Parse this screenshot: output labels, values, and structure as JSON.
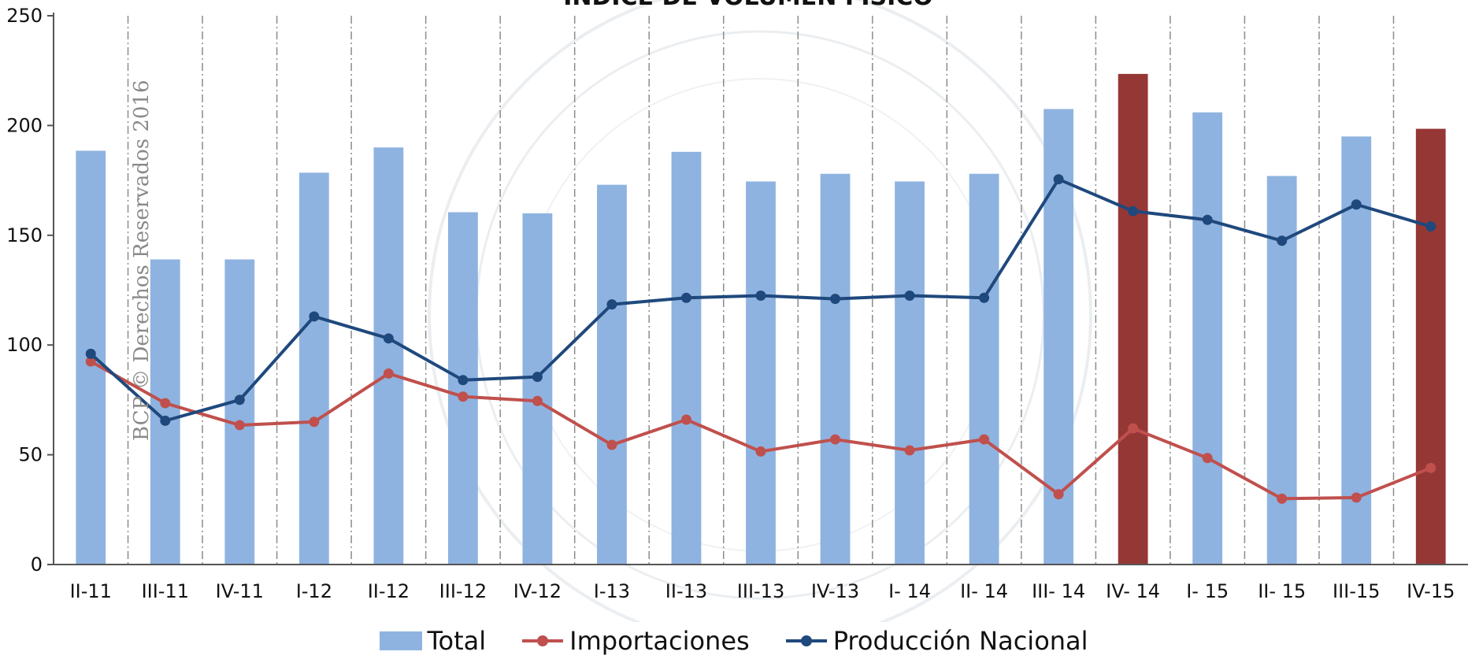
{
  "chart_data": {
    "type": "bar",
    "title": "ÍNDICE DE VOLUMEN FÍSICO",
    "watermark": "BCP © Derechos Reservados 2016",
    "categories": [
      "II-11",
      "III-11",
      "IV-11",
      "I-12",
      "II-12",
      "III-12",
      "IV-12",
      "I-13",
      "II-13",
      "III-13",
      "IV-13",
      "I- 14",
      "II- 14",
      "III- 14",
      "IV- 14",
      "I- 15",
      "II- 15",
      "III-15",
      "IV-15"
    ],
    "ylim": [
      0,
      250
    ],
    "yticks": [
      0,
      50,
      100,
      150,
      200,
      250
    ],
    "highlight_categories": [
      "IV- 14",
      "IV-15"
    ],
    "grid": "vertical dash-dot",
    "legend_position": "bottom",
    "series": [
      {
        "name": "Total",
        "kind": "bar",
        "color": "#8fb3e0",
        "highlight_color": "#953735",
        "values": [
          188.5,
          139,
          139,
          178.5,
          190,
          160.5,
          160,
          173,
          188,
          174.5,
          178,
          174.5,
          178,
          207.5,
          223.5,
          206,
          177,
          195,
          198.5
        ]
      },
      {
        "name": "Importaciones",
        "kind": "line",
        "color": "#c0504d",
        "values": [
          92.5,
          73.5,
          63.5,
          65,
          87,
          76.5,
          74.5,
          54.5,
          66,
          51.5,
          57,
          52,
          57,
          32,
          62,
          48.5,
          30,
          30.5,
          44
        ]
      },
      {
        "name": "Producción Nacional",
        "kind": "line",
        "color": "#1f497d",
        "values": [
          96,
          65.5,
          75,
          113,
          103,
          84,
          85.5,
          118.5,
          121.5,
          122.5,
          121,
          122.5,
          121.5,
          175.5,
          161,
          157,
          147.5,
          164,
          154
        ]
      }
    ]
  }
}
